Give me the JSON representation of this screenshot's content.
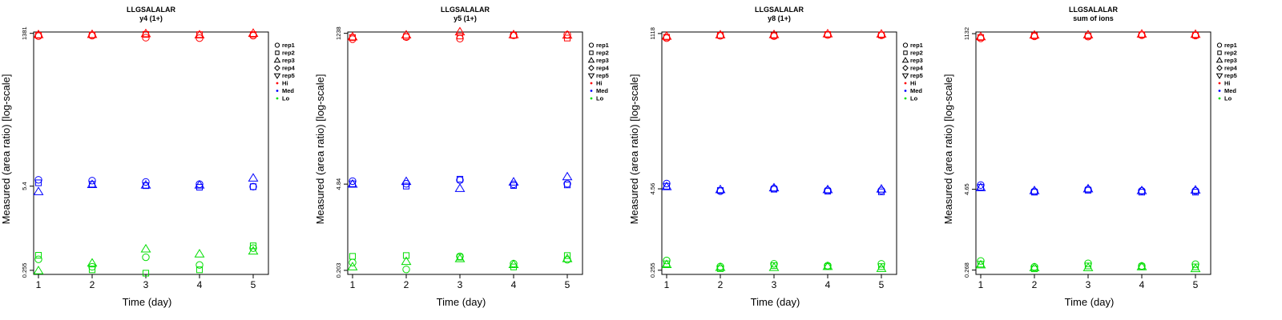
{
  "legend": {
    "entries": [
      {
        "label": "rep1",
        "kind": "shape",
        "shape": "circle"
      },
      {
        "label": "rep2",
        "kind": "shape",
        "shape": "square"
      },
      {
        "label": "rep3",
        "kind": "shape",
        "shape": "triangle"
      },
      {
        "label": "rep4",
        "kind": "shape",
        "shape": "diamond"
      },
      {
        "label": "rep5",
        "kind": "shape",
        "shape": "triangle-down"
      },
      {
        "label": "Hi",
        "kind": "color",
        "color": "#ff0000"
      },
      {
        "label": "Med",
        "kind": "color",
        "color": "#0000ff"
      },
      {
        "label": "Lo",
        "kind": "color",
        "color": "#00dd00"
      }
    ]
  },
  "colors": {
    "Hi": "#ff0000",
    "Med": "#0000ff",
    "Lo": "#00dd00",
    "axis": "#000000"
  },
  "chart_data": [
    {
      "type": "scatter",
      "title": "LLGSALALAR",
      "subtitle": "y4 (1+)",
      "xlabel": "Time (day)",
      "ylabel": "Measured (area ratio) [log-scale]",
      "x_ticks": [
        "1",
        "2",
        "3",
        "4",
        "5"
      ],
      "y_ticks": [
        {
          "label": "0.255",
          "value": 0.255
        },
        {
          "label": "5.4",
          "value": 5.4
        },
        {
          "label": "1381",
          "value": 1381
        }
      ],
      "ylim": [
        0.22,
        1450
      ],
      "series": [
        {
          "level": "Hi",
          "rep": "rep1",
          "x": [
            1,
            2,
            3,
            4,
            5
          ],
          "y": [
            1250,
            1270,
            1180,
            1160,
            1270
          ]
        },
        {
          "level": "Hi",
          "rep": "rep2",
          "x": [
            1,
            2,
            3,
            4,
            5
          ],
          "y": [
            1290,
            1300,
            1330,
            1320,
            1320
          ]
        },
        {
          "level": "Hi",
          "rep": "rep3",
          "x": [
            1,
            2,
            3,
            4,
            5
          ],
          "y": [
            1310,
            1320,
            1360,
            1300,
            1375
          ]
        },
        {
          "level": "Med",
          "rep": "rep1",
          "x": [
            1,
            2,
            3,
            4,
            5
          ],
          "y": [
            6.8,
            6.6,
            6.3,
            5.8,
            5.3
          ]
        },
        {
          "level": "Med",
          "rep": "rep2",
          "x": [
            1,
            2,
            3,
            4,
            5
          ],
          "y": [
            6.1,
            5.8,
            5.5,
            5.2,
            5.3
          ]
        },
        {
          "level": "Med",
          "rep": "rep3",
          "x": [
            1,
            2,
            3,
            4,
            5
          ],
          "y": [
            4.4,
            5.7,
            5.6,
            5.6,
            7.2
          ]
        },
        {
          "level": "Lo",
          "rep": "rep1",
          "x": [
            1,
            2,
            3,
            4,
            5
          ],
          "y": [
            0.38,
            0.29,
            0.41,
            0.31,
            0.57
          ]
        },
        {
          "level": "Lo",
          "rep": "rep2",
          "x": [
            1,
            2,
            3,
            4,
            5
          ],
          "y": [
            0.44,
            0.26,
            0.23,
            0.26,
            0.62
          ]
        },
        {
          "level": "Lo",
          "rep": "rep3",
          "x": [
            1,
            2,
            3,
            4,
            5
          ],
          "y": [
            0.25,
            0.33,
            0.55,
            0.46,
            0.51
          ]
        }
      ]
    },
    {
      "type": "scatter",
      "title": "LLGSALALAR",
      "subtitle": "y5 (1+)",
      "xlabel": "Time (day)",
      "ylabel": "Measured (area ratio) [log-scale]",
      "x_ticks": [
        "1",
        "2",
        "3",
        "4",
        "5"
      ],
      "y_ticks": [
        {
          "label": "0.203",
          "value": 0.203
        },
        {
          "label": "4.84",
          "value": 4.84
        },
        {
          "label": "1238",
          "value": 1238
        }
      ],
      "ylim": [
        0.175,
        1300
      ],
      "series": [
        {
          "level": "Hi",
          "rep": "rep1",
          "x": [
            1,
            2,
            3,
            4,
            5
          ],
          "y": [
            1000,
            1080,
            1020,
            1150,
            1180
          ]
        },
        {
          "level": "Hi",
          "rep": "rep2",
          "x": [
            1,
            2,
            3,
            4,
            5
          ],
          "y": [
            1060,
            1100,
            1120,
            1150,
            1040
          ]
        },
        {
          "level": "Hi",
          "rep": "rep3",
          "x": [
            1,
            2,
            3,
            4,
            5
          ],
          "y": [
            1080,
            1160,
            1300,
            1170,
            1150
          ]
        },
        {
          "level": "Med",
          "rep": "rep1",
          "x": [
            1,
            2,
            3,
            4,
            5
          ],
          "y": [
            5.4,
            4.9,
            5.6,
            4.8,
            4.9
          ]
        },
        {
          "level": "Med",
          "rep": "rep2",
          "x": [
            1,
            2,
            3,
            4,
            5
          ],
          "y": [
            4.9,
            4.5,
            5.8,
            4.6,
            4.7
          ]
        },
        {
          "level": "Med",
          "rep": "rep3",
          "x": [
            1,
            2,
            3,
            4,
            5
          ],
          "y": [
            4.8,
            5.3,
            4.1,
            5.2,
            6.3
          ]
        },
        {
          "level": "Lo",
          "rep": "rep1",
          "x": [
            1,
            2,
            3,
            4,
            5
          ],
          "y": [
            0.27,
            0.21,
            0.34,
            0.26,
            0.3
          ]
        },
        {
          "level": "Lo",
          "rep": "rep2",
          "x": [
            1,
            2,
            3,
            4,
            5
          ],
          "y": [
            0.34,
            0.35,
            0.33,
            0.23,
            0.35
          ]
        },
        {
          "level": "Lo",
          "rep": "rep3",
          "x": [
            1,
            2,
            3,
            4,
            5
          ],
          "y": [
            0.23,
            0.28,
            0.31,
            0.25,
            0.31
          ]
        }
      ]
    },
    {
      "type": "scatter",
      "title": "LLGSALALAR",
      "subtitle": "y8 (1+)",
      "xlabel": "Time (day)",
      "ylabel": "Measured (area ratio) [log-scale]",
      "x_ticks": [
        "1",
        "2",
        "3",
        "4",
        "5"
      ],
      "y_ticks": [
        {
          "label": "0.255",
          "value": 0.255
        },
        {
          "label": "4.56",
          "value": 4.56
        },
        {
          "label": "1118",
          "value": 1118
        }
      ],
      "ylim": [
        0.22,
        1180
      ],
      "series": [
        {
          "level": "Hi",
          "rep": "rep1",
          "x": [
            1,
            2,
            3,
            4,
            5
          ],
          "y": [
            950,
            1030,
            1020,
            1060,
            1050
          ]
        },
        {
          "level": "Hi",
          "rep": "rep2",
          "x": [
            1,
            2,
            3,
            4,
            5
          ],
          "y": [
            980,
            1050,
            1040,
            1080,
            1060
          ]
        },
        {
          "level": "Hi",
          "rep": "rep3",
          "x": [
            1,
            2,
            3,
            4,
            5
          ],
          "y": [
            1010,
            1060,
            1070,
            1100,
            1090
          ]
        },
        {
          "level": "Med",
          "rep": "rep1",
          "x": [
            1,
            2,
            3,
            4,
            5
          ],
          "y": [
            5.5,
            4.2,
            4.6,
            4.3,
            4.3
          ]
        },
        {
          "level": "Med",
          "rep": "rep2",
          "x": [
            1,
            2,
            3,
            4,
            5
          ],
          "y": [
            5.0,
            4.3,
            4.5,
            4.2,
            4.1
          ]
        },
        {
          "level": "Med",
          "rep": "rep3",
          "x": [
            1,
            2,
            3,
            4,
            5
          ],
          "y": [
            4.9,
            4.4,
            4.7,
            4.4,
            4.5
          ]
        },
        {
          "level": "Lo",
          "rep": "rep1",
          "x": [
            1,
            2,
            3,
            4,
            5
          ],
          "y": [
            0.36,
            0.29,
            0.32,
            0.3,
            0.32
          ]
        },
        {
          "level": "Lo",
          "rep": "rep2",
          "x": [
            1,
            2,
            3,
            4,
            5
          ],
          "y": [
            0.32,
            0.27,
            0.3,
            0.29,
            0.29
          ]
        },
        {
          "level": "Lo",
          "rep": "rep3",
          "x": [
            1,
            2,
            3,
            4,
            5
          ],
          "y": [
            0.31,
            0.28,
            0.28,
            0.29,
            0.27
          ]
        }
      ]
    },
    {
      "type": "scatter",
      "title": "LLGSALALAR",
      "subtitle": "sum of ions",
      "xlabel": "Time (day)",
      "ylabel": "Measured (area ratio) [log-scale]",
      "x_ticks": [
        "1",
        "2",
        "3",
        "4",
        "5"
      ],
      "y_ticks": [
        {
          "label": "0.268",
          "value": 0.268
        },
        {
          "label": "4.65",
          "value": 4.65
        },
        {
          "label": "1132",
          "value": 1132
        }
      ],
      "ylim": [
        0.23,
        1200
      ],
      "series": [
        {
          "level": "Hi",
          "rep": "rep1",
          "x": [
            1,
            2,
            3,
            4,
            5
          ],
          "y": [
            960,
            1030,
            1020,
            1070,
            1060
          ]
        },
        {
          "level": "Hi",
          "rep": "rep2",
          "x": [
            1,
            2,
            3,
            4,
            5
          ],
          "y": [
            990,
            1050,
            1040,
            1090,
            1070
          ]
        },
        {
          "level": "Hi",
          "rep": "rep3",
          "x": [
            1,
            2,
            3,
            4,
            5
          ],
          "y": [
            1010,
            1070,
            1080,
            1110,
            1100
          ]
        },
        {
          "level": "Med",
          "rep": "rep1",
          "x": [
            1,
            2,
            3,
            4,
            5
          ],
          "y": [
            5.4,
            4.3,
            4.6,
            4.4,
            4.4
          ]
        },
        {
          "level": "Med",
          "rep": "rep2",
          "x": [
            1,
            2,
            3,
            4,
            5
          ],
          "y": [
            5.0,
            4.2,
            4.5,
            4.2,
            4.2
          ]
        },
        {
          "level": "Med",
          "rep": "rep3",
          "x": [
            1,
            2,
            3,
            4,
            5
          ],
          "y": [
            4.9,
            4.4,
            4.7,
            4.4,
            4.5
          ]
        },
        {
          "level": "Lo",
          "rep": "rep1",
          "x": [
            1,
            2,
            3,
            4,
            5
          ],
          "y": [
            0.37,
            0.3,
            0.34,
            0.31,
            0.33
          ]
        },
        {
          "level": "Lo",
          "rep": "rep2",
          "x": [
            1,
            2,
            3,
            4,
            5
          ],
          "y": [
            0.33,
            0.28,
            0.31,
            0.3,
            0.3
          ]
        },
        {
          "level": "Lo",
          "rep": "rep3",
          "x": [
            1,
            2,
            3,
            4,
            5
          ],
          "y": [
            0.32,
            0.29,
            0.29,
            0.3,
            0.28
          ]
        }
      ]
    }
  ]
}
